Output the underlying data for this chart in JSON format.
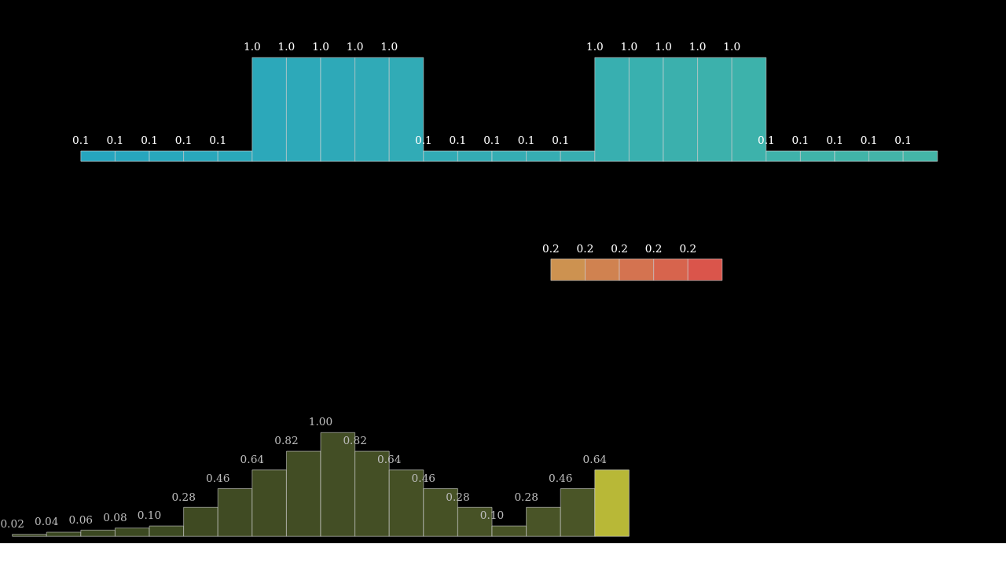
{
  "chart_data": [
    {
      "type": "bar",
      "categories": [
        null,
        null,
        null,
        null,
        null,
        null,
        null,
        null,
        null,
        null,
        null,
        null,
        null,
        null,
        null,
        null,
        null,
        null,
        null,
        null,
        null,
        null,
        null,
        null,
        null
      ],
      "values": [
        0.1,
        0.1,
        0.1,
        0.1,
        0.1,
        1.0,
        1.0,
        1.0,
        1.0,
        1.0,
        0.1,
        0.1,
        0.1,
        0.1,
        0.1,
        1.0,
        1.0,
        1.0,
        1.0,
        1.0,
        0.1,
        0.1,
        0.1,
        0.1,
        0.1
      ],
      "value_labels": [
        "0.1",
        "0.1",
        "0.1",
        "0.1",
        "0.1",
        "1.0",
        "1.0",
        "1.0",
        "1.0",
        "1.0",
        "0.1",
        "0.1",
        "0.1",
        "0.1",
        "0.1",
        "1.0",
        "1.0",
        "1.0",
        "1.0",
        "1.0",
        "0.1",
        "0.1",
        "0.1",
        "0.1",
        "0.1"
      ],
      "colors": [
        "#29aec9",
        "#2aafc8",
        "#2bb0c7",
        "#2cb0c6",
        "#2db1c5",
        "#2fb2c4",
        "#30b3c3",
        "#31b3c2",
        "#33b4c1",
        "#34b5c0",
        "#35b5bf",
        "#37b6be",
        "#38b7bd",
        "#39b7bc",
        "#3bb8bb",
        "#3cb9ba",
        "#3dbab9",
        "#3fbab7",
        "#40bbb6",
        "#41bcb5",
        "#43bcb4",
        "#44bdb3",
        "#45beb2",
        "#47beb1",
        "#48bfb0"
      ]
    },
    {
      "type": "bar",
      "categories": [
        null,
        null,
        null,
        null,
        null
      ],
      "values": [
        0.2,
        0.2,
        0.2,
        0.2,
        0.2
      ],
      "value_labels": [
        "0.2",
        "0.2",
        "0.2",
        "0.2",
        "0.2"
      ],
      "colors": [
        "#d99a55",
        "#dc8a55",
        "#e07a55",
        "#e36a52",
        "#e65a50"
      ]
    },
    {
      "type": "bar",
      "categories": [
        null,
        null,
        null,
        null,
        null,
        null,
        null,
        null,
        null,
        null,
        null,
        null,
        null,
        null,
        null,
        null,
        null,
        null
      ],
      "values": [
        0.02,
        0.04,
        0.06,
        0.08,
        0.1,
        0.28,
        0.46,
        0.64,
        0.82,
        1.0,
        0.82,
        0.64,
        0.46,
        0.28,
        0.1,
        0.28,
        0.46,
        0.64
      ],
      "value_labels": [
        "0.02",
        "0.04",
        "0.06",
        "0.08",
        "0.10",
        "0.28",
        "0.46",
        "0.64",
        "0.82",
        "1.00",
        "0.82",
        "0.64",
        "0.46",
        "0.28",
        "0.10",
        "0.28",
        "0.46",
        "0.64"
      ],
      "colors": [
        "#3d4a22",
        "#3e4b22",
        "#3f4c23",
        "#404d23",
        "#414e24",
        "#434f24",
        "#445025",
        "#455125",
        "#465226",
        "#475327",
        "#485427",
        "#495528",
        "#4a5628",
        "#4b5729",
        "#4c5829",
        "#4d592a",
        "#4e5a2a",
        "#c2c23a"
      ]
    }
  ]
}
